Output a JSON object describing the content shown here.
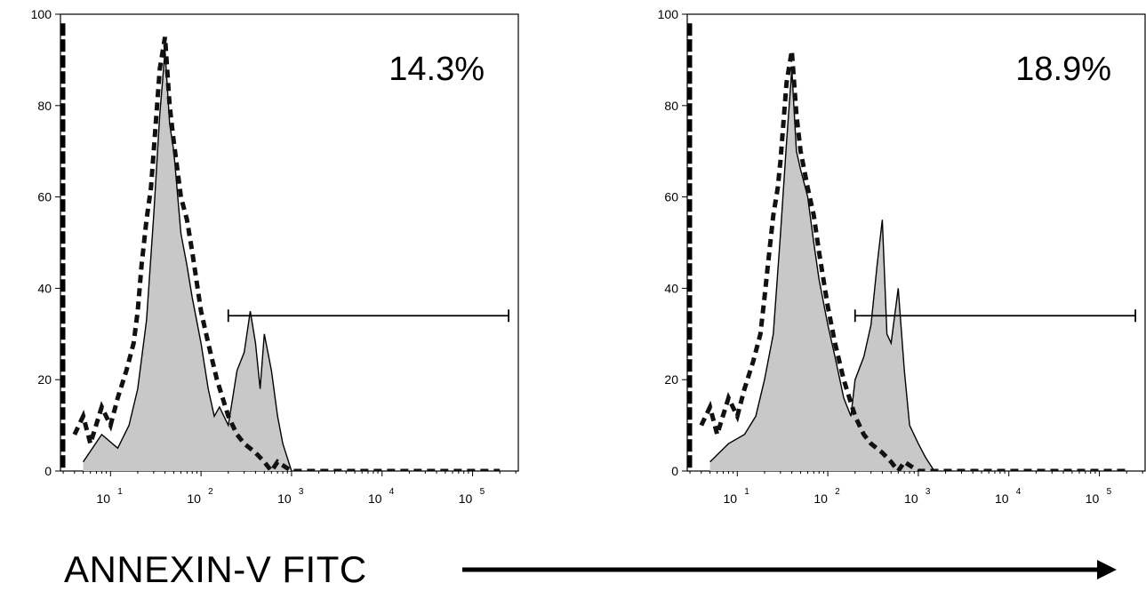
{
  "x_axis_caption": "ANNEXIN-V FITC",
  "colors": {
    "fill": "#c8c8c8",
    "line": "#000000",
    "dashed": "#111111",
    "gate": "#000000"
  },
  "chart_data": [
    {
      "type": "histogram-overlay",
      "x_scale": "log",
      "y_scale": "linear",
      "ylim": [
        0,
        100
      ],
      "y_ticks": [
        0,
        20,
        40,
        60,
        80,
        100
      ],
      "x_ticks": [
        {
          "base": "10",
          "exp": "1",
          "value": 10
        },
        {
          "base": "10",
          "exp": "2",
          "value": 100
        },
        {
          "base": "10",
          "exp": "3",
          "value": 1000
        },
        {
          "base": "10",
          "exp": "4",
          "value": 10000
        },
        {
          "base": "10",
          "exp": "5",
          "value": 100000
        }
      ],
      "gate_label": "14.3%",
      "gate": {
        "x_start": 200,
        "x_end": 250000,
        "y": 34
      },
      "series": [
        {
          "style": "filled",
          "x": [
            5,
            8,
            12,
            16,
            20,
            25,
            30,
            35,
            40,
            45,
            50,
            60,
            70,
            80,
            100,
            120,
            140,
            160,
            200,
            250,
            300,
            350,
            400,
            450,
            500,
            600,
            700,
            800,
            1000
          ],
          "y": [
            2,
            8,
            5,
            10,
            18,
            33,
            56,
            78,
            92,
            76,
            70,
            52,
            45,
            38,
            28,
            18,
            12,
            14,
            10,
            22,
            26,
            35,
            28,
            18,
            30,
            22,
            12,
            6,
            0
          ]
        },
        {
          "style": "dashed",
          "x": [
            4,
            5,
            6,
            8,
            10,
            12,
            15,
            18,
            20,
            22,
            25,
            28,
            30,
            35,
            40,
            45,
            50,
            60,
            70,
            80,
            100,
            120,
            150,
            200,
            250,
            300,
            400,
            500,
            600,
            700,
            1000,
            2000,
            5000,
            10000,
            20000,
            100000,
            200000
          ],
          "y": [
            8,
            12,
            6,
            14,
            10,
            16,
            22,
            28,
            35,
            45,
            55,
            62,
            70,
            88,
            95,
            80,
            72,
            60,
            55,
            48,
            35,
            28,
            20,
            12,
            8,
            6,
            4,
            2,
            0,
            2,
            0,
            0,
            0,
            0,
            0,
            0,
            0
          ]
        }
      ]
    },
    {
      "type": "histogram-overlay",
      "x_scale": "log",
      "y_scale": "linear",
      "ylim": [
        0,
        100
      ],
      "y_ticks": [
        0,
        20,
        40,
        60,
        80,
        100
      ],
      "x_ticks": [
        {
          "base": "10",
          "exp": "1",
          "value": 10
        },
        {
          "base": "10",
          "exp": "2",
          "value": 100
        },
        {
          "base": "10",
          "exp": "3",
          "value": 1000
        },
        {
          "base": "10",
          "exp": "4",
          "value": 10000
        },
        {
          "base": "10",
          "exp": "5",
          "value": 100000
        }
      ],
      "gate_label": "18.9%",
      "gate": {
        "x_start": 200,
        "x_end": 250000,
        "y": 34
      },
      "series": [
        {
          "style": "filled",
          "x": [
            5,
            8,
            12,
            16,
            20,
            25,
            30,
            35,
            40,
            45,
            50,
            60,
            70,
            80,
            100,
            120,
            150,
            180,
            200,
            250,
            300,
            350,
            400,
            450,
            500,
            600,
            700,
            800,
            1000,
            1200,
            1500
          ],
          "y": [
            2,
            6,
            8,
            12,
            20,
            30,
            52,
            72,
            88,
            70,
            66,
            60,
            50,
            42,
            32,
            25,
            16,
            12,
            20,
            25,
            32,
            45,
            55,
            30,
            28,
            40,
            22,
            10,
            6,
            3,
            0
          ]
        },
        {
          "style": "dashed",
          "x": [
            4,
            5,
            6,
            8,
            10,
            12,
            15,
            18,
            20,
            22,
            25,
            28,
            30,
            35,
            40,
            45,
            50,
            60,
            70,
            80,
            100,
            120,
            150,
            200,
            250,
            300,
            400,
            500,
            600,
            700,
            1000,
            2000,
            5000,
            10000,
            20000,
            100000,
            200000
          ],
          "y": [
            10,
            14,
            8,
            16,
            12,
            18,
            24,
            30,
            38,
            46,
            56,
            62,
            68,
            85,
            92,
            78,
            70,
            62,
            56,
            48,
            36,
            28,
            20,
            12,
            8,
            6,
            4,
            2,
            0,
            2,
            0,
            0,
            0,
            0,
            0,
            0,
            0
          ]
        }
      ]
    }
  ]
}
